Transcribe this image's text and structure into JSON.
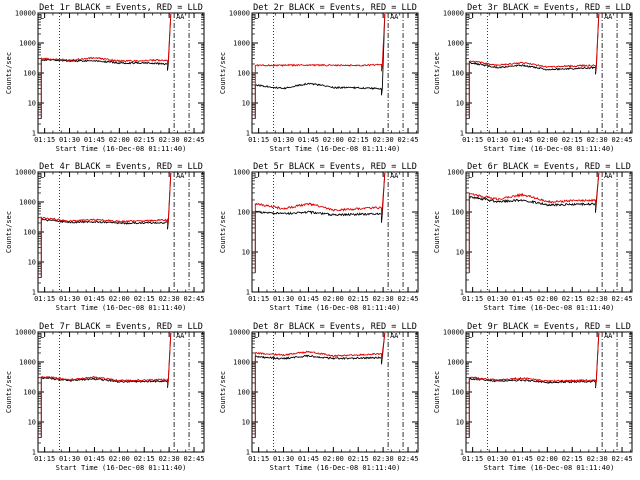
{
  "shared": {
    "ylabel": "Counts/sec",
    "xlabel": "Start Time (16-Dec-08 01:11:40)",
    "x_tick_labels": [
      "01:15",
      "01:30",
      "01:45",
      "02:00",
      "02:15",
      "02:30",
      "02:45"
    ],
    "y_tick_labels": [
      "1",
      "10",
      "100",
      "1000",
      "10000"
    ],
    "marker_labels": [
      "L",
      "A",
      "A"
    ],
    "colors": {
      "events": "#000000",
      "lld": "#e00000"
    }
  },
  "chart_data": [
    {
      "type": "line",
      "title": "Det 1r BLACK = Events, RED = LLD",
      "xlabel": "Start Time (16-Dec-08 01:11:40)",
      "ylabel": "Counts/sec",
      "ylim": [
        1,
        10000
      ],
      "scale": "log",
      "series": [
        {
          "name": "Events",
          "color": "#000000",
          "x": [
            "01:13",
            "01:30",
            "01:45",
            "02:00",
            "02:15",
            "02:29"
          ],
          "values": [
            280,
            250,
            260,
            215,
            220,
            200
          ]
        },
        {
          "name": "LLD",
          "color": "#e00000",
          "x": [
            "01:13",
            "01:30",
            "01:45",
            "02:00",
            "02:15",
            "02:29"
          ],
          "values": [
            300,
            270,
            320,
            250,
            260,
            270
          ]
        }
      ]
    },
    {
      "type": "line",
      "title": "Det 2r BLACK = Events, RED = LLD",
      "xlabel": "Start Time (16-Dec-08 01:11:40)",
      "ylabel": "Counts/sec",
      "ylim": [
        1,
        10000
      ],
      "scale": "log",
      "series": [
        {
          "name": "Events",
          "color": "#000000",
          "x": [
            "01:13",
            "01:30",
            "01:45",
            "02:00",
            "02:15",
            "02:29"
          ],
          "values": [
            40,
            30,
            45,
            33,
            32,
            30
          ]
        },
        {
          "name": "LLD",
          "color": "#e00000",
          "x": [
            "01:13",
            "01:30",
            "01:45",
            "02:00",
            "02:15",
            "02:29"
          ],
          "values": [
            180,
            180,
            185,
            180,
            180,
            190
          ]
        }
      ]
    },
    {
      "type": "line",
      "title": "Det 3r BLACK = Events, RED = LLD",
      "xlabel": "Start Time (16-Dec-08 01:11:40)",
      "ylabel": "Counts/sec",
      "ylim": [
        1,
        10000
      ],
      "scale": "log",
      "series": [
        {
          "name": "Events",
          "color": "#000000",
          "x": [
            "01:13",
            "01:30",
            "01:45",
            "02:00",
            "02:15",
            "02:29"
          ],
          "values": [
            220,
            150,
            180,
            130,
            140,
            150
          ]
        },
        {
          "name": "LLD",
          "color": "#e00000",
          "x": [
            "01:13",
            "01:30",
            "01:45",
            "02:00",
            "02:15",
            "02:29"
          ],
          "values": [
            250,
            180,
            220,
            160,
            170,
            180
          ]
        }
      ]
    },
    {
      "type": "line",
      "title": "Det 4r BLACK = Events, RED = LLD",
      "xlabel": "Start Time (16-Dec-08 01:11:40)",
      "ylabel": "Counts/sec",
      "ylim": [
        1,
        10000
      ],
      "scale": "log",
      "series": [
        {
          "name": "Events",
          "color": "#000000",
          "x": [
            "01:13",
            "01:30",
            "01:45",
            "02:00",
            "02:15",
            "02:29"
          ],
          "values": [
            260,
            210,
            220,
            195,
            200,
            205
          ]
        },
        {
          "name": "LLD",
          "color": "#e00000",
          "x": [
            "01:13",
            "01:30",
            "01:45",
            "02:00",
            "02:15",
            "02:29"
          ],
          "values": [
            300,
            230,
            260,
            225,
            235,
            250
          ]
        }
      ]
    },
    {
      "type": "line",
      "title": "Det 5r BLACK = Events, RED = LLD",
      "xlabel": "Start Time (16-Dec-08 01:11:40)",
      "ylabel": "Counts/sec",
      "ylim": [
        1,
        1000
      ],
      "scale": "log",
      "series": [
        {
          "name": "Events",
          "color": "#000000",
          "x": [
            "01:13",
            "01:30",
            "01:45",
            "02:00",
            "02:15",
            "02:29"
          ],
          "values": [
            100,
            90,
            100,
            85,
            88,
            90
          ]
        },
        {
          "name": "LLD",
          "color": "#e00000",
          "x": [
            "01:13",
            "01:30",
            "01:45",
            "02:00",
            "02:15",
            "02:29"
          ],
          "values": [
            160,
            120,
            160,
            110,
            120,
            130
          ]
        }
      ]
    },
    {
      "type": "line",
      "title": "Det 6r BLACK = Events, RED = LLD",
      "xlabel": "Start Time (16-Dec-08 01:11:40)",
      "ylabel": "Counts/sec",
      "ylim": [
        1,
        1000
      ],
      "scale": "log",
      "series": [
        {
          "name": "Events",
          "color": "#000000",
          "x": [
            "01:13",
            "01:30",
            "01:45",
            "02:00",
            "02:15",
            "02:29"
          ],
          "values": [
            240,
            180,
            200,
            150,
            155,
            160
          ]
        },
        {
          "name": "LLD",
          "color": "#e00000",
          "x": [
            "01:13",
            "01:30",
            "01:45",
            "02:00",
            "02:15",
            "02:29"
          ],
          "values": [
            280,
            210,
            270,
            180,
            190,
            200
          ]
        }
      ]
    },
    {
      "type": "line",
      "title": "Det 7r BLACK = Events, RED = LLD",
      "xlabel": "Start Time (16-Dec-08 01:11:40)",
      "ylabel": "Counts/sec",
      "ylim": [
        1,
        10000
      ],
      "scale": "log",
      "series": [
        {
          "name": "Events",
          "color": "#000000",
          "x": [
            "01:13",
            "01:30",
            "01:45",
            "02:00",
            "02:15",
            "02:29"
          ],
          "values": [
            300,
            240,
            270,
            220,
            225,
            230
          ]
        },
        {
          "name": "LLD",
          "color": "#e00000",
          "x": [
            "01:13",
            "01:30",
            "01:45",
            "02:00",
            "02:15",
            "02:29"
          ],
          "values": [
            330,
            260,
            310,
            240,
            250,
            260
          ]
        }
      ]
    },
    {
      "type": "line",
      "title": "Det 8r BLACK = Events, RED = LLD",
      "xlabel": "Start Time (16-Dec-08 01:11:40)",
      "ylabel": "Counts/sec",
      "ylim": [
        1,
        10000
      ],
      "scale": "log",
      "series": [
        {
          "name": "Events",
          "color": "#000000",
          "x": [
            "01:13",
            "01:30",
            "01:45",
            "02:00",
            "02:15",
            "02:29"
          ],
          "values": [
            1500,
            1300,
            1600,
            1300,
            1350,
            1400
          ]
        },
        {
          "name": "LLD",
          "color": "#e00000",
          "x": [
            "01:13",
            "01:30",
            "01:45",
            "02:00",
            "02:15",
            "02:29"
          ],
          "values": [
            2000,
            1700,
            2200,
            1600,
            1700,
            1900
          ]
        }
      ]
    },
    {
      "type": "line",
      "title": "Det 9r BLACK = Events, RED = LLD",
      "xlabel": "Start Time (16-Dec-08 01:11:40)",
      "ylabel": "Counts/sec",
      "ylim": [
        1,
        10000
      ],
      "scale": "log",
      "series": [
        {
          "name": "Events",
          "color": "#000000",
          "x": [
            "01:13",
            "01:30",
            "01:45",
            "02:00",
            "02:15",
            "02:29"
          ],
          "values": [
            280,
            230,
            250,
            210,
            220,
            225
          ]
        },
        {
          "name": "LLD",
          "color": "#e00000",
          "x": [
            "01:13",
            "01:30",
            "01:45",
            "02:00",
            "02:15",
            "02:29"
          ],
          "values": [
            310,
            250,
            290,
            230,
            240,
            250
          ]
        }
      ]
    }
  ]
}
